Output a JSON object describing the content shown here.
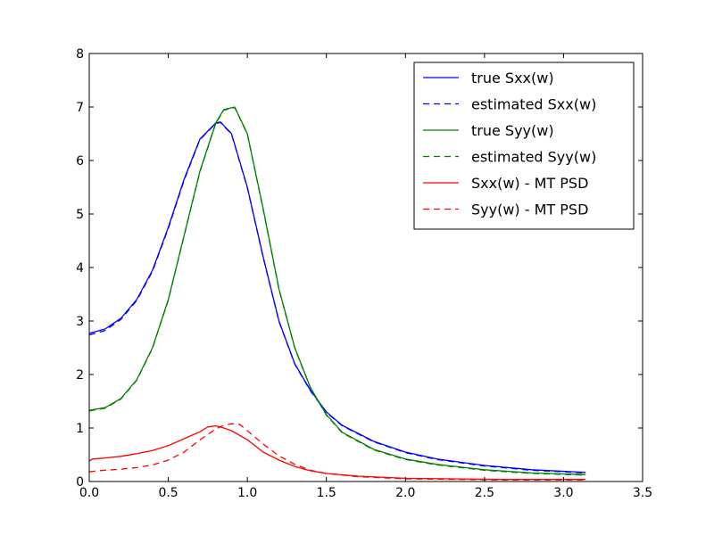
{
  "chart_data": {
    "type": "line",
    "title": "",
    "xlabel": "",
    "ylabel": "",
    "xlim": [
      0,
      3.5
    ],
    "ylim": [
      0,
      8
    ],
    "xticks": [
      0.0,
      0.5,
      1.0,
      1.5,
      2.0,
      2.5,
      3.0,
      3.5
    ],
    "xtick_labels": [
      "0.0",
      "0.5",
      "1.0",
      "1.5",
      "2.0",
      "2.5",
      "3.0",
      "3.5"
    ],
    "yticks": [
      0,
      1,
      2,
      3,
      4,
      5,
      6,
      7,
      8
    ],
    "ytick_labels": [
      "0",
      "1",
      "2",
      "3",
      "4",
      "5",
      "6",
      "7",
      "8"
    ],
    "grid": false,
    "legend_position": "top-right",
    "series": [
      {
        "name": "true Sxx(w)",
        "color": "#0000ff",
        "style": "solid",
        "x": [
          0.0,
          0.1,
          0.2,
          0.3,
          0.4,
          0.5,
          0.6,
          0.7,
          0.8,
          0.83,
          0.9,
          1.0,
          1.1,
          1.2,
          1.3,
          1.4,
          1.5,
          1.6,
          1.8,
          2.0,
          2.2,
          2.5,
          2.8,
          3.14
        ],
        "y": [
          2.77,
          2.85,
          3.05,
          3.4,
          3.95,
          4.75,
          5.65,
          6.4,
          6.7,
          6.72,
          6.5,
          5.5,
          4.2,
          3.0,
          2.2,
          1.7,
          1.3,
          1.05,
          0.75,
          0.55,
          0.42,
          0.3,
          0.22,
          0.17
        ]
      },
      {
        "name": "estimated Sxx(w)",
        "color": "#0000ff",
        "style": "dashed",
        "x": [
          0.0,
          0.1,
          0.2,
          0.3,
          0.4,
          0.5,
          0.6,
          0.7,
          0.8,
          0.83,
          0.9,
          1.0,
          1.1,
          1.2,
          1.3,
          1.4,
          1.5,
          1.6,
          1.8,
          2.0,
          2.2,
          2.5,
          2.8,
          3.14
        ],
        "y": [
          2.74,
          2.82,
          3.03,
          3.38,
          3.93,
          4.73,
          5.63,
          6.39,
          6.69,
          6.71,
          6.49,
          5.49,
          4.19,
          2.99,
          2.19,
          1.69,
          1.29,
          1.04,
          0.74,
          0.54,
          0.41,
          0.29,
          0.21,
          0.16
        ]
      },
      {
        "name": "true Syy(w)",
        "color": "#008000",
        "style": "solid",
        "x": [
          0.0,
          0.1,
          0.2,
          0.3,
          0.4,
          0.5,
          0.6,
          0.7,
          0.8,
          0.85,
          0.92,
          1.0,
          1.1,
          1.2,
          1.3,
          1.4,
          1.5,
          1.6,
          1.8,
          2.0,
          2.2,
          2.5,
          2.8,
          3.14
        ],
        "y": [
          1.33,
          1.38,
          1.55,
          1.9,
          2.5,
          3.4,
          4.6,
          5.8,
          6.7,
          6.95,
          7.0,
          6.5,
          5.1,
          3.6,
          2.5,
          1.75,
          1.25,
          0.92,
          0.6,
          0.42,
          0.32,
          0.22,
          0.16,
          0.13
        ]
      },
      {
        "name": "estimated Syy(w)",
        "color": "#008000",
        "style": "dashed",
        "x": [
          0.0,
          0.1,
          0.2,
          0.3,
          0.4,
          0.5,
          0.6,
          0.7,
          0.8,
          0.85,
          0.92,
          1.0,
          1.1,
          1.2,
          1.3,
          1.4,
          1.5,
          1.6,
          1.8,
          2.0,
          2.2,
          2.5,
          2.8,
          3.14
        ],
        "y": [
          1.32,
          1.37,
          1.54,
          1.89,
          2.49,
          3.39,
          4.59,
          5.79,
          6.69,
          6.94,
          6.99,
          6.49,
          5.09,
          3.59,
          2.49,
          1.74,
          1.24,
          0.91,
          0.59,
          0.41,
          0.31,
          0.21,
          0.15,
          0.12
        ]
      },
      {
        "name": "Sxx(w) - MT PSD",
        "color": "#ff0000",
        "style": "solid",
        "x": [
          0.0,
          0.02,
          0.1,
          0.2,
          0.3,
          0.4,
          0.5,
          0.6,
          0.7,
          0.75,
          0.8,
          0.85,
          0.9,
          1.0,
          1.1,
          1.2,
          1.3,
          1.4,
          1.5,
          1.7,
          2.0,
          2.3,
          2.6,
          2.9,
          3.14
        ],
        "y": [
          0.38,
          0.42,
          0.44,
          0.47,
          0.52,
          0.58,
          0.67,
          0.8,
          0.93,
          1.02,
          1.04,
          1.0,
          0.95,
          0.78,
          0.55,
          0.4,
          0.28,
          0.2,
          0.15,
          0.1,
          0.06,
          0.05,
          0.04,
          0.04,
          0.04
        ]
      },
      {
        "name": "Syy(w) - MT PSD",
        "color": "#ff0000",
        "style": "dashed",
        "x": [
          0.0,
          0.05,
          0.1,
          0.2,
          0.3,
          0.4,
          0.5,
          0.6,
          0.7,
          0.8,
          0.85,
          0.9,
          0.95,
          1.0,
          1.1,
          1.2,
          1.3,
          1.4,
          1.5,
          1.7,
          2.0,
          2.3,
          2.6,
          2.9,
          3.14
        ],
        "y": [
          0.18,
          0.2,
          0.21,
          0.23,
          0.26,
          0.31,
          0.4,
          0.55,
          0.78,
          0.98,
          1.05,
          1.08,
          1.07,
          0.95,
          0.7,
          0.48,
          0.32,
          0.21,
          0.15,
          0.09,
          0.05,
          0.04,
          0.03,
          0.03,
          0.03
        ]
      }
    ]
  }
}
